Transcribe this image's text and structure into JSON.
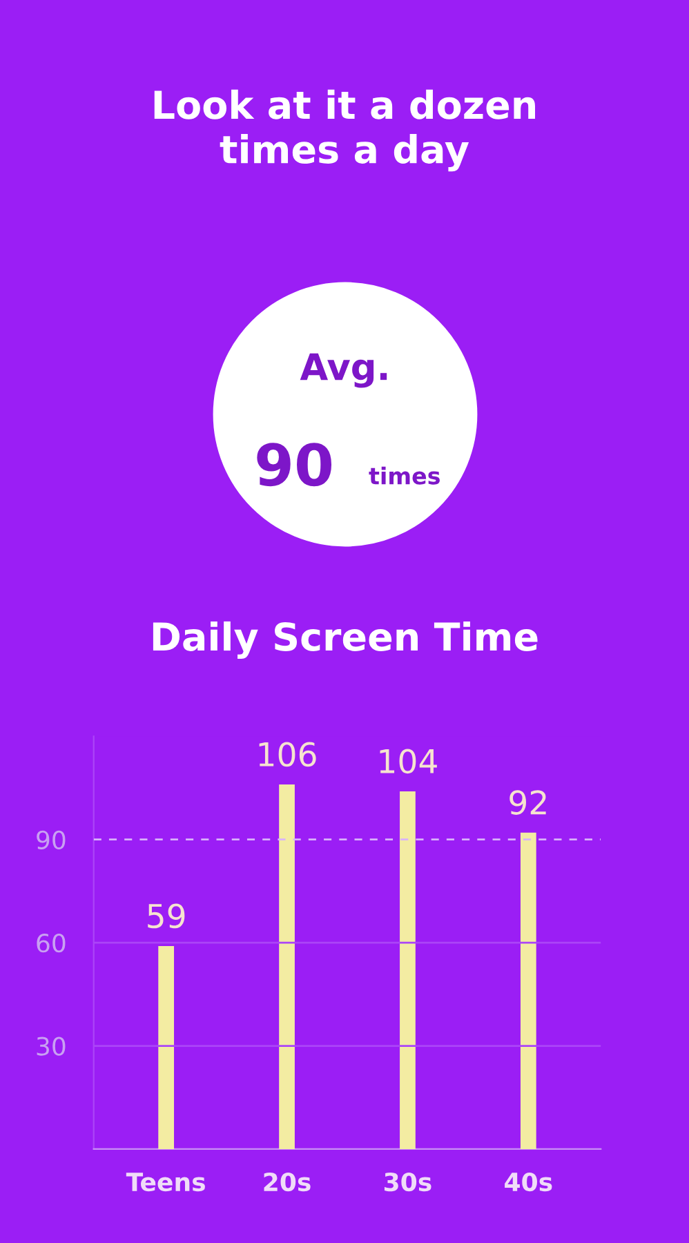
{
  "chart_data": {
    "type": "bar",
    "title": "Look at it a dozen\ntimes a day",
    "subtitle": "Daily Screen Time",
    "annotations": [
      "Avg.",
      "90",
      "times"
    ],
    "categories": [
      "Teens",
      "20s",
      "30s",
      "40s"
    ],
    "values": [
      59,
      106,
      104,
      92
    ],
    "color": "#f3eca2",
    "ylim": [
      0,
      120
    ],
    "yticks": [
      30,
      60,
      90
    ],
    "ref_lines": [
      {
        "axis": "y",
        "value": 30,
        "label": null,
        "color": "#ab45f7",
        "line_style": "solid"
      },
      {
        "axis": "y",
        "value": 60,
        "label": null,
        "color": "#ab45f7",
        "line_style": "solid"
      },
      {
        "axis": "y",
        "value": 90,
        "label": null,
        "color": "#d9b3fa",
        "line_style": "dashed"
      }
    ],
    "data_labels": true
  }
}
